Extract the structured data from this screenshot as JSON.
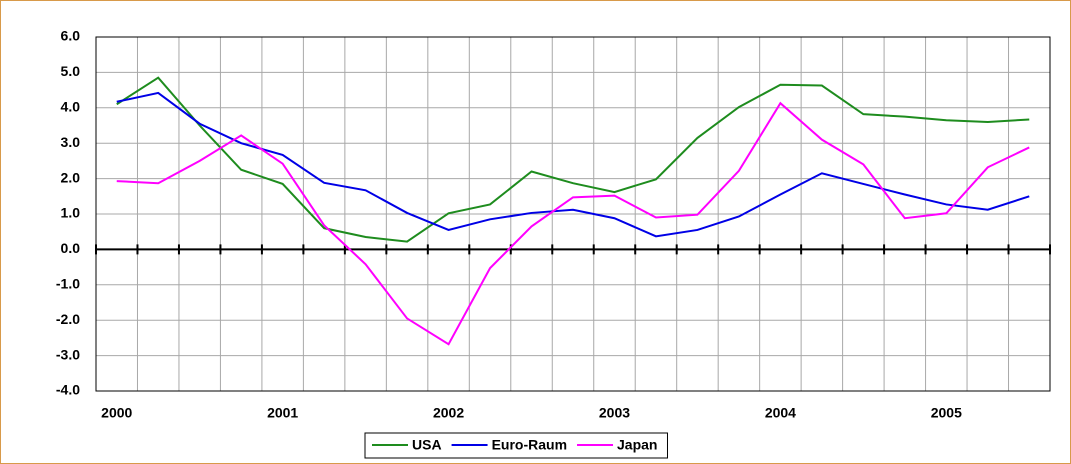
{
  "chart_data": {
    "type": "line",
    "categories": [
      "2000",
      null,
      null,
      null,
      "2001",
      null,
      null,
      null,
      "2002",
      null,
      null,
      null,
      "2003",
      null,
      null,
      null,
      "2004",
      null,
      null,
      null,
      "2005",
      null,
      null
    ],
    "series": [
      {
        "name": "USA",
        "color": "#1e8c1e",
        "values": [
          4.1,
          4.85,
          3.5,
          2.25,
          1.85,
          0.6,
          0.35,
          0.22,
          1.02,
          1.27,
          2.2,
          1.87,
          1.62,
          1.98,
          3.15,
          4.02,
          4.65,
          4.63,
          3.82,
          3.75,
          3.65,
          3.6,
          3.67
        ]
      },
      {
        "name": "Euro-Raum",
        "color": "#0000e6",
        "values": [
          4.17,
          4.42,
          3.55,
          3.0,
          2.67,
          1.88,
          1.67,
          1.03,
          0.55,
          0.85,
          1.03,
          1.12,
          0.88,
          0.37,
          0.55,
          0.93,
          1.55,
          2.15,
          1.85,
          1.55,
          1.27,
          1.12,
          1.5
        ]
      },
      {
        "name": "Japan",
        "color": "#ff00ff",
        "values": [
          1.93,
          1.87,
          2.5,
          3.22,
          2.42,
          0.68,
          -0.42,
          -1.95,
          -2.68,
          -0.53,
          0.65,
          1.47,
          1.52,
          0.9,
          0.98,
          2.22,
          4.13,
          3.1,
          2.4,
          0.88,
          1.02,
          2.32,
          2.88
        ]
      }
    ],
    "ylim": [
      -4,
      6
    ],
    "yticks": [
      {
        "value": -4,
        "label": "-4.0"
      },
      {
        "value": -3,
        "label": "-3.0"
      },
      {
        "value": -2,
        "label": "-2.0"
      },
      {
        "value": -1,
        "label": "-1.0"
      },
      {
        "value": 0,
        "label": "0.0"
      },
      {
        "value": 1,
        "label": "1.0"
      },
      {
        "value": 2,
        "label": "2.0"
      },
      {
        "value": 3,
        "label": "3.0"
      },
      {
        "value": 4,
        "label": "4.0"
      },
      {
        "value": 5,
        "label": "5.0"
      },
      {
        "value": 6,
        "label": "6.0"
      }
    ],
    "grid": true,
    "legend": "bottom"
  }
}
